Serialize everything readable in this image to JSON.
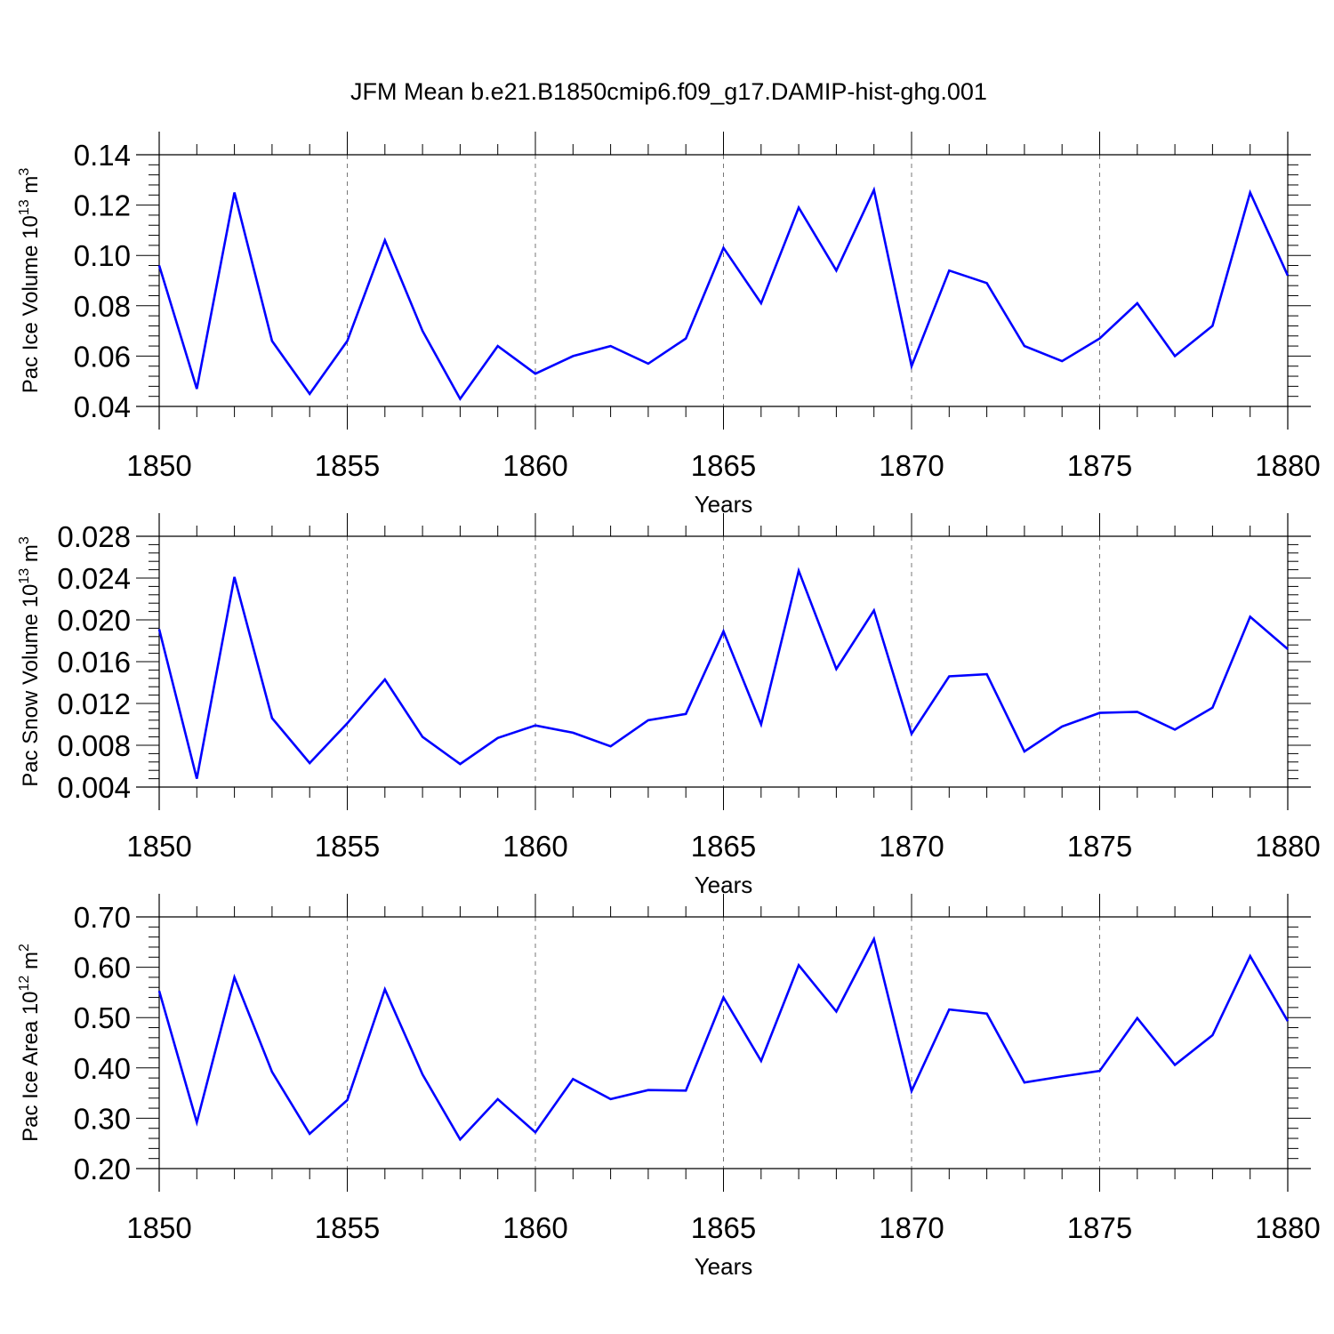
{
  "title": "JFM Mean b.e21.B1850cmip6.f09_g17.DAMIP-hist-ghg.001",
  "colors": {
    "line": "#0000ff",
    "grid": "#777777",
    "axis": "#000000"
  },
  "chart_data": [
    {
      "type": "line",
      "ylabel": "Pac Ice Volume 10",
      "ylabel_exp": "13",
      "ylabel_unit": " m",
      "ylabel_unit_exp": "3",
      "xlabel": "Years",
      "xlim": [
        1850,
        1880
      ],
      "ylim": [
        0.04,
        0.14
      ],
      "x_ticks": [
        1850,
        1855,
        1860,
        1865,
        1870,
        1875,
        1880
      ],
      "x_tick_labels": [
        "1850",
        "1855",
        "1860",
        "1865",
        "1870",
        "1875",
        "1880"
      ],
      "y_ticks": [
        0.04,
        0.06,
        0.08,
        0.1,
        0.12,
        0.14
      ],
      "y_tick_labels": [
        "0.04",
        "0.06",
        "0.08",
        "0.10",
        "0.12",
        "0.14"
      ],
      "grid": "vertical dashed at major x ticks",
      "x": [
        1850,
        1851,
        1852,
        1853,
        1854,
        1855,
        1856,
        1857,
        1858,
        1859,
        1860,
        1861,
        1862,
        1863,
        1864,
        1865,
        1866,
        1867,
        1868,
        1869,
        1870,
        1871,
        1872,
        1873,
        1874,
        1875,
        1876,
        1877,
        1878,
        1879,
        1880
      ],
      "values": [
        0.096,
        0.047,
        0.125,
        0.066,
        0.045,
        0.066,
        0.106,
        0.07,
        0.043,
        0.064,
        0.053,
        0.06,
        0.064,
        0.057,
        0.067,
        0.103,
        0.081,
        0.119,
        0.094,
        0.126,
        0.056,
        0.094,
        0.089,
        0.064,
        0.058,
        0.067,
        0.081,
        0.06,
        0.072,
        0.125,
        0.092
      ]
    },
    {
      "type": "line",
      "ylabel": "Pac Snow Volume 10",
      "ylabel_exp": "13",
      "ylabel_unit": " m",
      "ylabel_unit_exp": "3",
      "xlabel": "Years",
      "xlim": [
        1850,
        1880
      ],
      "ylim": [
        0.004,
        0.028
      ],
      "x_ticks": [
        1850,
        1855,
        1860,
        1865,
        1870,
        1875,
        1880
      ],
      "x_tick_labels": [
        "1850",
        "1855",
        "1860",
        "1865",
        "1870",
        "1875",
        "1880"
      ],
      "y_ticks": [
        0.004,
        0.008,
        0.012,
        0.016,
        0.02,
        0.024,
        0.028
      ],
      "y_tick_labels": [
        "0.004",
        "0.008",
        "0.012",
        "0.016",
        "0.020",
        "0.024",
        "0.028"
      ],
      "grid": "vertical dashed at major x ticks",
      "x": [
        1850,
        1851,
        1852,
        1853,
        1854,
        1855,
        1856,
        1857,
        1858,
        1859,
        1860,
        1861,
        1862,
        1863,
        1864,
        1865,
        1866,
        1867,
        1868,
        1869,
        1870,
        1871,
        1872,
        1873,
        1874,
        1875,
        1876,
        1877,
        1878,
        1879,
        1880
      ],
      "values": [
        0.0191,
        0.0048,
        0.0241,
        0.0106,
        0.0063,
        0.0101,
        0.0143,
        0.0088,
        0.0062,
        0.0087,
        0.0099,
        0.0092,
        0.0079,
        0.0104,
        0.011,
        0.0189,
        0.01,
        0.0247,
        0.0153,
        0.0209,
        0.0091,
        0.0146,
        0.0148,
        0.0074,
        0.0098,
        0.0111,
        0.0112,
        0.0095,
        0.0116,
        0.0203,
        0.0172
      ]
    },
    {
      "type": "line",
      "ylabel": "Pac Ice Area 10",
      "ylabel_exp": "12",
      "ylabel_unit": " m",
      "ylabel_unit_exp": "2",
      "xlabel": "Years",
      "xlim": [
        1850,
        1880
      ],
      "ylim": [
        0.2,
        0.7
      ],
      "x_ticks": [
        1850,
        1855,
        1860,
        1865,
        1870,
        1875,
        1880
      ],
      "x_tick_labels": [
        "1850",
        "1855",
        "1860",
        "1865",
        "1870",
        "1875",
        "1880"
      ],
      "y_ticks": [
        0.2,
        0.3,
        0.4,
        0.5,
        0.6,
        0.7
      ],
      "y_tick_labels": [
        "0.20",
        "0.30",
        "0.40",
        "0.50",
        "0.60",
        "0.70"
      ],
      "grid": "vertical dashed at major x ticks",
      "x": [
        1850,
        1851,
        1852,
        1853,
        1854,
        1855,
        1856,
        1857,
        1858,
        1859,
        1860,
        1861,
        1862,
        1863,
        1864,
        1865,
        1866,
        1867,
        1868,
        1869,
        1870,
        1871,
        1872,
        1873,
        1874,
        1875,
        1876,
        1877,
        1878,
        1879,
        1880
      ],
      "values": [
        0.553,
        0.292,
        0.58,
        0.392,
        0.269,
        0.336,
        0.556,
        0.387,
        0.258,
        0.338,
        0.272,
        0.378,
        0.338,
        0.356,
        0.355,
        0.54,
        0.414,
        0.604,
        0.512,
        0.656,
        0.354,
        0.516,
        0.508,
        0.371,
        0.383,
        0.394,
        0.499,
        0.406,
        0.465,
        0.622,
        0.493
      ]
    }
  ]
}
